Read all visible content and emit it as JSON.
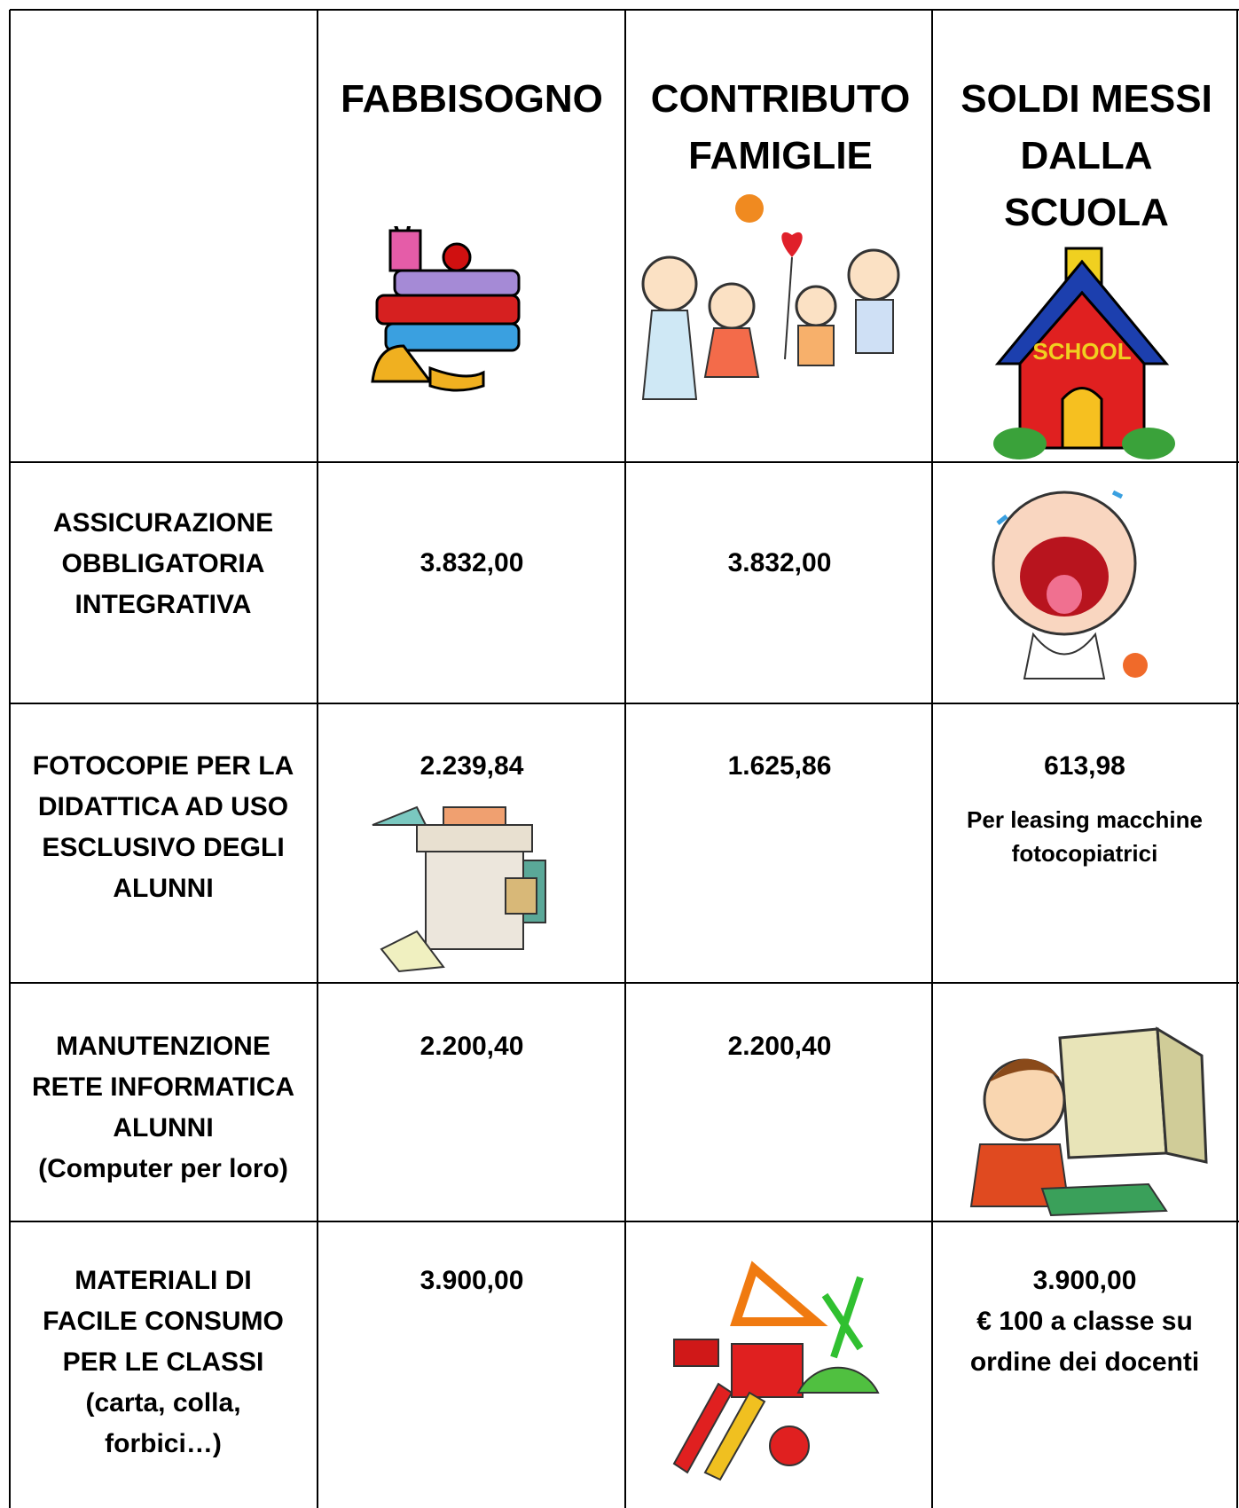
{
  "table": {
    "header": [
      "FABBISOGNO",
      "CONTRIBUTO FAMIGLIE",
      "SOLDI MESSI DALLA SCUOLA"
    ],
    "rows": [
      {
        "label": "ASSICURAZIONE OBBLIGATORIA INTEGRATIVA",
        "fabbisogno": "3.832,00",
        "contributo": "3.832,00"
      },
      {
        "label": "FOTOCOPIE PER LA DIDATTICA AD USO ESCLUSIVO DEGLI ALUNNI",
        "fabbisogno": "2.239,84",
        "contributo": "1.625,86",
        "scuola": "613,98",
        "scuola_note": "Per leasing macchine fotocopiatrici"
      },
      {
        "label": "MANUTENZIONE RETE INFORMATICA ALUNNI",
        "sublabel": "(Computer per loro)",
        "fabbisogno": "2.200,40",
        "contributo": "2.200,40"
      },
      {
        "label": "MATERIALI DI FACILE CONSUMO PER LE CLASSI",
        "sublabel": "(carta, colla, forbici…)",
        "fabbisogno": "3.900,00",
        "scuola": "3.900,00",
        "scuola_note": "€ 100 a classe su ordine dei docenti"
      }
    ]
  }
}
